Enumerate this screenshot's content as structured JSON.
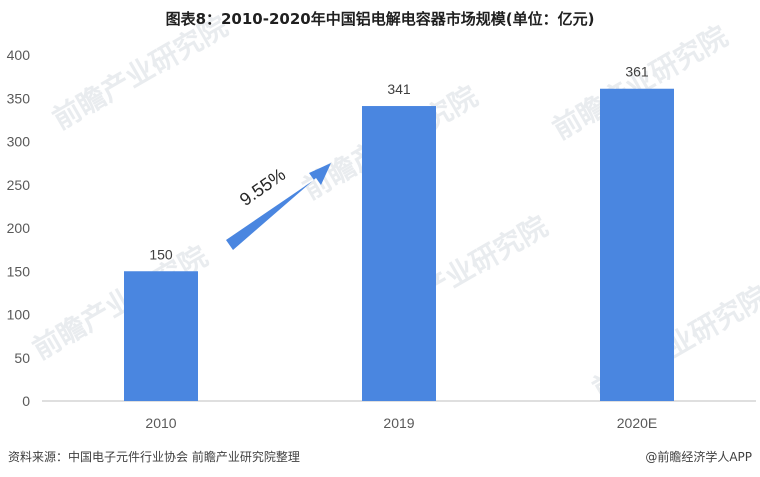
{
  "chart_data": {
    "type": "bar",
    "title": "图表8：2010-2020年中国铝电解电容器市场规模(单位：亿元)",
    "categories": [
      "2010",
      "2019",
      "2020E"
    ],
    "values": [
      150,
      341,
      361
    ],
    "data_labels": [
      "150",
      "341",
      "361"
    ],
    "ylim": [
      0,
      400
    ],
    "yticks": [
      0,
      50,
      100,
      150,
      200,
      250,
      300,
      350,
      400
    ],
    "xlabel": "",
    "ylabel": "",
    "grid": false,
    "bar_color": "#4A86E0",
    "annotation": {
      "text": "9.55%",
      "color": "#4A86E0"
    }
  },
  "footer": {
    "source": "资料来源：中国电子元件行业协会 前瞻产业研究院整理",
    "brand": "@前瞻经济学人APP"
  },
  "watermark": "前瞻产业研究院"
}
